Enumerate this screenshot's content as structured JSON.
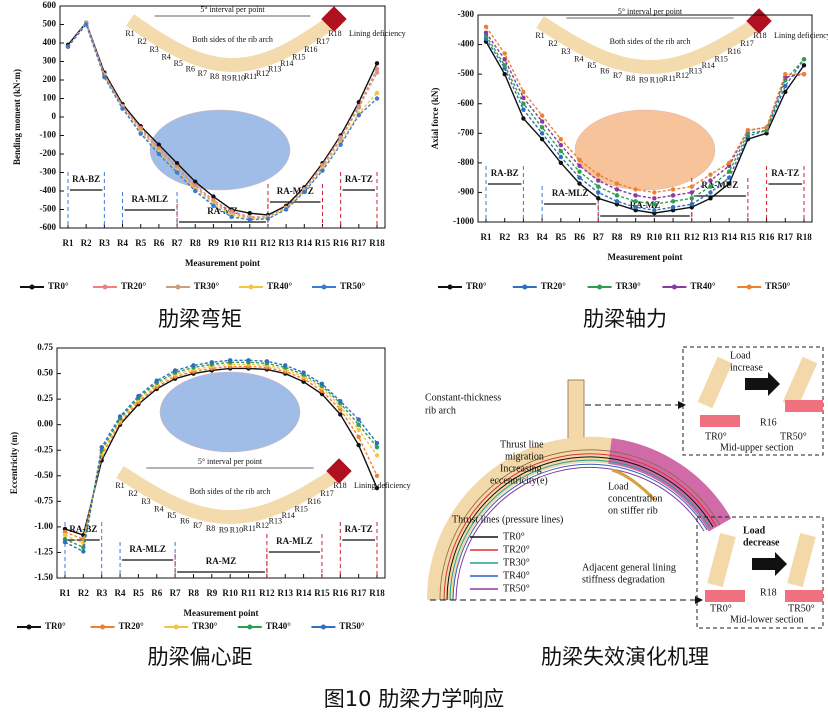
{
  "chart_data": [
    {
      "type": "line",
      "caption": "肋梁弯矩",
      "x_label": "Measurement point",
      "y_label": "Bending moment (kN·m)",
      "categories": [
        "R1",
        "R2",
        "R3",
        "R4",
        "R5",
        "R6",
        "R7",
        "R8",
        "R9",
        "R10",
        "R11",
        "R12",
        "R13",
        "R14",
        "R15",
        "R16",
        "R17",
        "R18"
      ],
      "ylim": [
        -600,
        600
      ],
      "yticks": [
        -600,
        -500,
        -400,
        -300,
        -200,
        -100,
        0,
        100,
        200,
        300,
        400,
        500,
        600
      ],
      "regions": [
        "RA-BZ",
        "RA-MLZ",
        "RA-MZ",
        "RA-MUZ",
        "RA-TZ"
      ],
      "inset": {
        "note": "5° interval per point",
        "arch": "Both sides of the rib arch",
        "deficiency": "Lining deficiency"
      },
      "series": [
        {
          "name": "TR0°",
          "color": "#111111",
          "values": [
            390,
            510,
            240,
            70,
            -50,
            -150,
            -250,
            -350,
            -430,
            -500,
            -520,
            -530,
            -480,
            -380,
            -250,
            -100,
            80,
            290
          ]
        },
        {
          "name": "TR20°",
          "color": "#f08080",
          "values": [
            380,
            510,
            230,
            60,
            -60,
            -170,
            -270,
            -370,
            -450,
            -510,
            -540,
            -540,
            -490,
            -390,
            -260,
            -110,
            60,
            260
          ]
        },
        {
          "name": "TR30°",
          "color": "#c8a080",
          "values": [
            380,
            505,
            225,
            55,
            -70,
            -180,
            -280,
            -380,
            -460,
            -520,
            -545,
            -540,
            -490,
            -395,
            -270,
            -120,
            50,
            240
          ]
        },
        {
          "name": "TR40°",
          "color": "#f5c542",
          "values": [
            380,
            500,
            220,
            50,
            -80,
            -190,
            -290,
            -390,
            -470,
            -530,
            -550,
            -545,
            -495,
            -400,
            -280,
            -140,
            20,
            130
          ]
        },
        {
          "name": "TR50°",
          "color": "#3a7bd5",
          "values": [
            380,
            500,
            215,
            45,
            -90,
            -200,
            -300,
            -400,
            -480,
            -540,
            -555,
            -550,
            -500,
            -405,
            -290,
            -150,
            10,
            100
          ]
        }
      ]
    },
    {
      "type": "line",
      "caption": "肋梁轴力",
      "x_label": "Measurement point",
      "y_label": "Axial force (kN)",
      "categories": [
        "R1",
        "R2",
        "R3",
        "R4",
        "R5",
        "R6",
        "R7",
        "R8",
        "R9",
        "R10",
        "R11",
        "R12",
        "R13",
        "R14",
        "R15",
        "R16",
        "R17",
        "R18"
      ],
      "ylim": [
        -1000,
        -300
      ],
      "yticks": [
        -1000,
        -900,
        -800,
        -700,
        -600,
        -500,
        -400,
        -300
      ],
      "regions": [
        "RA-BZ",
        "RA-MLZ",
        "RA-MZ",
        "RA-MUZ",
        "RA-TZ"
      ],
      "inset": {
        "note": "5° interval per point",
        "arch": "Both sides of the rib arch",
        "deficiency": "Lining deficiency"
      },
      "series": [
        {
          "name": "TR0°",
          "color": "#111111",
          "values": [
            -390,
            -500,
            -650,
            -720,
            -800,
            -870,
            -920,
            -940,
            -960,
            -970,
            -960,
            -950,
            -920,
            -870,
            -720,
            -700,
            -560,
            -470
          ]
        },
        {
          "name": "TR20°",
          "color": "#2f6fc0",
          "values": [
            -380,
            -480,
            -620,
            -700,
            -780,
            -850,
            -900,
            -930,
            -950,
            -960,
            -950,
            -940,
            -900,
            -850,
            -710,
            -690,
            -540,
            -450
          ]
        },
        {
          "name": "TR30°",
          "color": "#2e9e50",
          "values": [
            -370,
            -470,
            -600,
            -680,
            -760,
            -830,
            -880,
            -910,
            -930,
            -940,
            -930,
            -920,
            -880,
            -830,
            -700,
            -690,
            -520,
            -450
          ]
        },
        {
          "name": "TR40°",
          "color": "#8a3aa0",
          "values": [
            -360,
            -450,
            -580,
            -660,
            -740,
            -810,
            -860,
            -890,
            -910,
            -920,
            -910,
            -900,
            -860,
            -810,
            -690,
            -680,
            -510,
            -500
          ]
        },
        {
          "name": "TR50°",
          "color": "#f08030",
          "values": [
            -340,
            -430,
            -560,
            -640,
            -720,
            -790,
            -840,
            -870,
            -890,
            -900,
            -890,
            -880,
            -840,
            -800,
            -690,
            -680,
            -500,
            -500
          ]
        }
      ]
    },
    {
      "type": "line",
      "caption": "肋梁偏心距",
      "x_label": "Measurement point",
      "y_label": "Eccentricity (m)",
      "categories": [
        "R1",
        "R2",
        "R3",
        "R4",
        "R5",
        "R6",
        "R7",
        "R8",
        "R9",
        "R10",
        "R11",
        "R12",
        "R13",
        "R14",
        "R15",
        "R16",
        "R17",
        "R18"
      ],
      "ylim": [
        -1.5,
        0.75
      ],
      "yticks": [
        {
          "value": -1.5,
          "label": "-1.50"
        },
        -1.25,
        {
          "value": -1,
          "label": "-1.00"
        },
        -0.75,
        {
          "value": -0.5,
          "label": "-0.50"
        },
        -0.25,
        {
          "value": 0,
          "label": "0.00"
        },
        0.25,
        {
          "value": 0.5,
          "label": "0.50"
        },
        0.75
      ],
      "regions": [
        "RA-BZ",
        "RA-MLZ",
        "RA-MZ",
        "RA-MLZ",
        "RA-TZ"
      ],
      "inset": {
        "note": "5° interval per point",
        "arch": "Both sides of the rib arch",
        "deficiency": "Lining deficiency"
      },
      "series": [
        {
          "name": "TR0°",
          "color": "#111111",
          "values": [
            -1.02,
            -1.08,
            -0.35,
            0.0,
            0.2,
            0.35,
            0.45,
            0.5,
            0.53,
            0.55,
            0.55,
            0.54,
            0.5,
            0.42,
            0.3,
            0.1,
            -0.2,
            -0.62
          ]
        },
        {
          "name": "TR20°",
          "color": "#f08030",
          "values": [
            -1.05,
            -1.12,
            -0.3,
            0.02,
            0.22,
            0.37,
            0.47,
            0.52,
            0.55,
            0.57,
            0.57,
            0.56,
            0.52,
            0.45,
            0.33,
            0.15,
            -0.12,
            -0.5
          ]
        },
        {
          "name": "TR30°",
          "color": "#f5c542",
          "values": [
            -1.08,
            -1.16,
            -0.28,
            0.04,
            0.24,
            0.39,
            0.49,
            0.54,
            0.57,
            0.59,
            0.59,
            0.58,
            0.54,
            0.47,
            0.36,
            0.18,
            -0.05,
            -0.3
          ]
        },
        {
          "name": "TR40°",
          "color": "#2e9e50",
          "values": [
            -1.12,
            -1.2,
            -0.25,
            0.06,
            0.26,
            0.41,
            0.51,
            0.56,
            0.59,
            0.61,
            0.61,
            0.6,
            0.56,
            0.49,
            0.38,
            0.21,
            0.0,
            -0.22
          ]
        },
        {
          "name": "TR50°",
          "color": "#2f6fc0",
          "values": [
            -1.15,
            -1.24,
            -0.22,
            0.08,
            0.28,
            0.43,
            0.53,
            0.58,
            0.61,
            0.63,
            0.63,
            0.62,
            0.58,
            0.51,
            0.4,
            0.23,
            0.05,
            -0.18
          ]
        }
      ]
    }
  ],
  "diagram": {
    "caption": "肋梁失效演化机理",
    "rib_arch": [
      "Constant-thickness",
      "rib arch"
    ],
    "thrust_migration": [
      "Thrust line",
      "migration"
    ],
    "eccentricity": [
      "Increasing",
      "eccentricity(e)"
    ],
    "thrust_lines": "Thrust lines (pressure lines)",
    "legend": [
      {
        "name": "TR0°",
        "color": "#111111"
      },
      {
        "name": "TR20°",
        "color": "#e03030"
      },
      {
        "name": "TR30°",
        "color": "#20a090"
      },
      {
        "name": "TR40°",
        "color": "#3060c0"
      },
      {
        "name": "TR50°",
        "color": "#8a3aa0"
      }
    ],
    "degradation": [
      "Adjacent general lining",
      "stiffness degradation"
    ],
    "load_concentration": [
      "Load",
      "concentration",
      "on stiffer rib"
    ],
    "upper_box": {
      "load": [
        "Load",
        "increase"
      ],
      "point": "R16",
      "left": "TR0°",
      "right": "TR50°",
      "section": "Mid-upper section"
    },
    "lower_box": {
      "load": [
        "Load",
        "decrease"
      ],
      "point": "R18",
      "left": "TR0°",
      "right": "TR50°",
      "section": "Mid-lower section"
    }
  },
  "figure_caption": "图10 肋梁力学响应"
}
